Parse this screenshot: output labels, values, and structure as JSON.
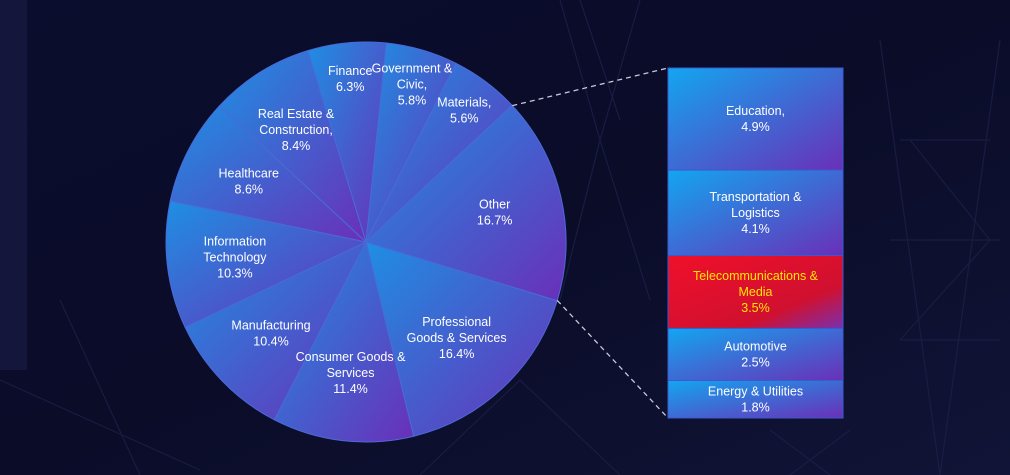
{
  "chart_data": {
    "type": "pie",
    "pie": {
      "slices": [
        {
          "label": "Professional Goods & Services",
          "value": 16.4
        },
        {
          "label": "Consumer Goods & Services",
          "value": 11.4
        },
        {
          "label": "Manufacturing",
          "value": 10.4
        },
        {
          "label": "Information Technology",
          "value": 10.3
        },
        {
          "label": "Healthcare",
          "value": 8.6
        },
        {
          "label": "Real Estate & Construction,",
          "value": 8.4
        },
        {
          "label": "Finance",
          "value": 6.3
        },
        {
          "label": "Government & Civic,",
          "value": 5.8
        },
        {
          "label": "Materials,",
          "value": 5.6
        },
        {
          "label": "Other",
          "value": 16.7
        }
      ]
    },
    "other_breakdown": {
      "type": "bar",
      "parent": "Other",
      "slices": [
        {
          "label": "Education,",
          "value": 4.9
        },
        {
          "label": "Transportation & Logistics",
          "value": 4.1
        },
        {
          "label": "Telecommunications & Media",
          "value": 3.5,
          "highlight": true
        },
        {
          "label": "Automotive",
          "value": 2.5
        },
        {
          "label": "Energy & Utilities",
          "value": 1.8
        }
      ]
    },
    "value_suffix": "%"
  },
  "colors": {
    "background": "#0a0c2a",
    "slice_gradient_start": "#1e8fe3",
    "slice_gradient_end": "#6a2fb8",
    "slice_stroke": "#4a6ad8",
    "highlight_fill": "#e0102a",
    "highlight_text": "#ffe600",
    "text": "#ffffff"
  }
}
